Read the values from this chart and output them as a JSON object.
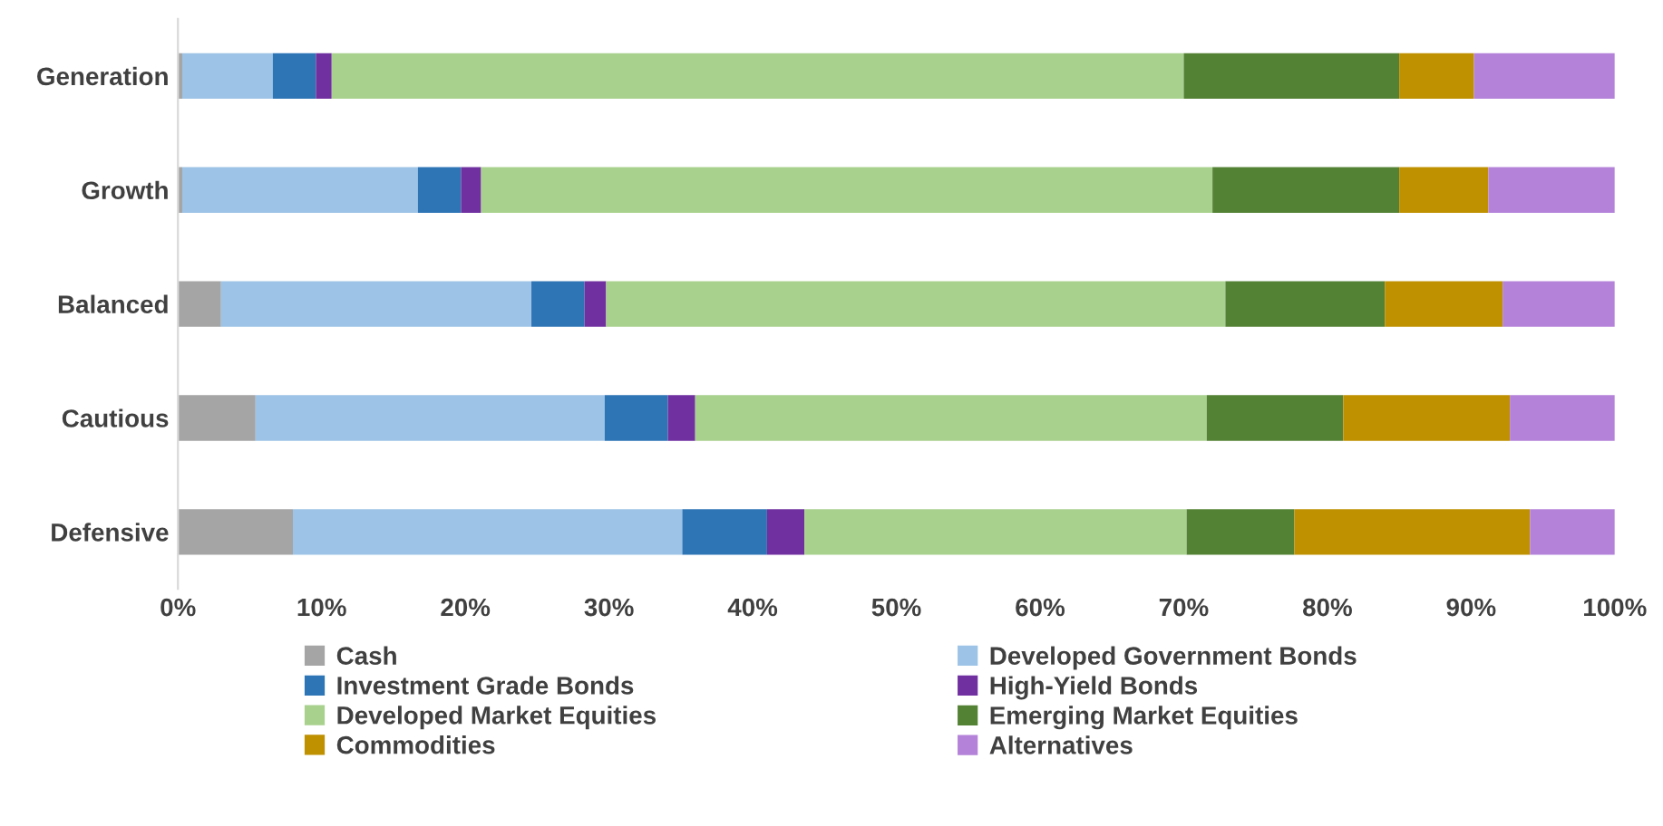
{
  "chart_data": {
    "type": "bar",
    "orientation": "horizontal",
    "stacked": true,
    "categories": [
      "Generation",
      "Growth",
      "Balanced",
      "Cautious",
      "Defensive"
    ],
    "series": [
      {
        "name": "Cash",
        "color": "#a5a5a5",
        "values": [
          0.3,
          0.3,
          3.0,
          5.4,
          8.0
        ]
      },
      {
        "name": "Developed Government Bonds",
        "color": "#9dc3e6",
        "values": [
          6.3,
          16.4,
          21.6,
          24.3,
          27.1
        ]
      },
      {
        "name": "Investment Grade Bonds",
        "color": "#2e75b6",
        "values": [
          3.0,
          3.0,
          3.7,
          4.4,
          5.9
        ]
      },
      {
        "name": "High-Yield Bonds",
        "color": "#7030a0",
        "values": [
          1.1,
          1.4,
          1.5,
          1.9,
          2.6
        ]
      },
      {
        "name": "Developed Market Equities",
        "color": "#a9d18e",
        "values": [
          59.3,
          50.9,
          43.1,
          35.6,
          26.6
        ]
      },
      {
        "name": "Emerging Market Equities",
        "color": "#548235",
        "values": [
          15.0,
          13.0,
          11.1,
          9.5,
          7.5
        ]
      },
      {
        "name": "Commodities",
        "color": "#bf9000",
        "values": [
          5.2,
          6.2,
          8.2,
          11.6,
          16.4
        ]
      },
      {
        "name": "Alternatives",
        "color": "#b482d9",
        "values": [
          9.8,
          8.8,
          7.8,
          7.3,
          5.9
        ]
      }
    ],
    "xlim": [
      0,
      100
    ],
    "xticks": [
      {
        "value": 0,
        "label": "0%"
      },
      {
        "value": 10,
        "label": "10%"
      },
      {
        "value": 20,
        "label": "20%"
      },
      {
        "value": 30,
        "label": "30%"
      },
      {
        "value": 40,
        "label": "40%"
      },
      {
        "value": 50,
        "label": "50%"
      },
      {
        "value": 60,
        "label": "60%"
      },
      {
        "value": 70,
        "label": "70%"
      },
      {
        "value": 80,
        "label": "80%"
      },
      {
        "value": 90,
        "label": "90%"
      },
      {
        "value": 100,
        "label": "100%"
      }
    ],
    "grid": false,
    "legend": "bottom"
  }
}
